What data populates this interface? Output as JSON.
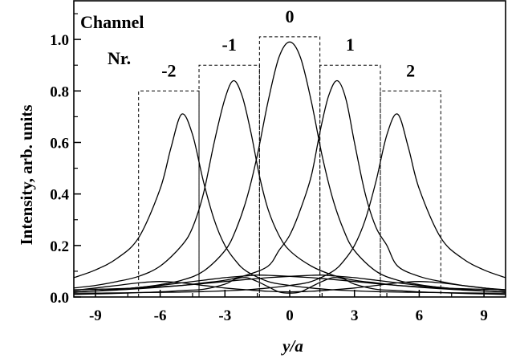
{
  "chart_data": {
    "type": "line",
    "xlabel": "y/a",
    "ylabel": "Intensity, arb. units",
    "xlim": [
      -10,
      10
    ],
    "ylim": [
      0,
      1.15
    ],
    "x_ticks": [
      -9,
      -6,
      -3,
      0,
      3,
      6,
      9
    ],
    "x_tick_labels": [
      "-9",
      "-6",
      "-3",
      "0",
      "3",
      "6",
      "9"
    ],
    "y_ticks": [
      0,
      0.2,
      0.4,
      0.6,
      0.8,
      1.0
    ],
    "y_tick_labels": [
      "0.0",
      "0.2",
      "0.4",
      "0.6",
      "0.8",
      "1.0"
    ],
    "legend_title": [
      "Channel",
      "Nr."
    ],
    "channels": [
      {
        "label": "-2",
        "x_range": [
          -7.0,
          -4.2
        ],
        "level": 0.8,
        "peak_x": -5.0,
        "peak_y": 0.71
      },
      {
        "label": "-1",
        "x_range": [
          -4.2,
          -1.4
        ],
        "level": 0.9,
        "peak_x": -2.6,
        "peak_y": 0.84
      },
      {
        "label": "0",
        "x_range": [
          -1.4,
          1.4
        ],
        "level": 1.01,
        "peak_x": 0.0,
        "peak_y": 0.99
      },
      {
        "label": "1",
        "x_range": [
          1.4,
          4.2
        ],
        "level": 0.9,
        "peak_x": 2.6,
        "peak_y": 0.84
      },
      {
        "label": "2",
        "x_range": [
          4.2,
          7.0
        ],
        "level": 0.8,
        "peak_x": 5.0,
        "peak_y": 0.71
      }
    ],
    "series": [
      {
        "x": [
          -10,
          -9,
          -8,
          -7,
          -6,
          -5.5,
          -5,
          -4.5,
          -4,
          -3.5,
          -3,
          -2.5,
          -2,
          -1,
          0,
          1,
          2,
          3,
          4,
          5,
          6,
          7,
          8,
          9,
          10
        ],
        "y": [
          0.075,
          0.105,
          0.15,
          0.23,
          0.42,
          0.58,
          0.71,
          0.63,
          0.45,
          0.3,
          0.2,
          0.14,
          0.1,
          0.06,
          0.045,
          0.035,
          0.028,
          0.024,
          0.021,
          0.019,
          0.018,
          0.017,
          0.016,
          0.015,
          0.015
        ]
      },
      {
        "x": [
          -10,
          -9,
          -8,
          -7,
          -6,
          -5,
          -4.5,
          -4,
          -3.5,
          -3,
          -2.6,
          -2.2,
          -1.8,
          -1.4,
          -1,
          -0.5,
          0,
          1,
          2,
          3,
          4,
          5,
          6,
          7,
          8,
          9,
          10
        ],
        "y": [
          0.035,
          0.045,
          0.06,
          0.08,
          0.12,
          0.2,
          0.27,
          0.4,
          0.6,
          0.77,
          0.84,
          0.78,
          0.64,
          0.47,
          0.34,
          0.24,
          0.18,
          0.12,
          0.085,
          0.065,
          0.055,
          0.045,
          0.04,
          0.035,
          0.032,
          0.03,
          0.028
        ]
      },
      {
        "x": [
          -10,
          -9,
          -8,
          -7,
          -6,
          -5,
          -4,
          -3,
          -2.5,
          -2,
          -1.5,
          -1,
          -0.5,
          0,
          0.5,
          1,
          1.5,
          2,
          2.5,
          3,
          4,
          5,
          6,
          7,
          8,
          9,
          10
        ],
        "y": [
          0.02,
          0.024,
          0.03,
          0.037,
          0.048,
          0.065,
          0.1,
          0.18,
          0.26,
          0.38,
          0.55,
          0.76,
          0.93,
          0.99,
          0.93,
          0.76,
          0.55,
          0.38,
          0.26,
          0.18,
          0.1,
          0.065,
          0.048,
          0.037,
          0.03,
          0.024,
          0.02
        ]
      },
      {
        "x": [
          -10,
          -9,
          -8,
          -7,
          -6,
          -5,
          -4,
          -3,
          -2,
          -1,
          -0.5,
          0,
          0.5,
          1,
          1.4,
          1.8,
          2.2,
          2.6,
          3,
          3.5,
          4,
          4.5,
          5,
          6,
          7,
          8,
          9,
          10
        ],
        "y": [
          0.028,
          0.03,
          0.032,
          0.035,
          0.04,
          0.045,
          0.055,
          0.065,
          0.085,
          0.12,
          0.18,
          0.24,
          0.34,
          0.47,
          0.64,
          0.78,
          0.84,
          0.77,
          0.6,
          0.4,
          0.27,
          0.2,
          0.12,
          0.08,
          0.06,
          0.045,
          0.035,
          0.028
        ]
      },
      {
        "x": [
          -10,
          -9,
          -8,
          -7,
          -6,
          -5,
          -4,
          -3,
          -2,
          -1,
          0,
          1,
          2,
          2.5,
          3,
          3.5,
          4,
          4.5,
          5,
          5.5,
          6,
          7,
          8,
          9,
          10
        ],
        "y": [
          0.015,
          0.015,
          0.016,
          0.017,
          0.018,
          0.019,
          0.021,
          0.024,
          0.028,
          0.035,
          0.045,
          0.06,
          0.1,
          0.14,
          0.2,
          0.3,
          0.45,
          0.63,
          0.71,
          0.58,
          0.42,
          0.23,
          0.15,
          0.105,
          0.075
        ]
      },
      {
        "x": [
          -10,
          -9,
          -8,
          -7,
          -6,
          -5,
          -4,
          -3,
          -2,
          -1.5,
          -1,
          0,
          1,
          2,
          3,
          4,
          5,
          6,
          7,
          8,
          9,
          10
        ],
        "y": [
          0.02,
          0.024,
          0.03,
          0.037,
          0.045,
          0.055,
          0.065,
          0.075,
          0.082,
          0.085,
          0.084,
          0.08,
          0.075,
          0.068,
          0.06,
          0.052,
          0.045,
          0.038,
          0.032,
          0.027,
          0.023,
          0.02
        ]
      },
      {
        "x": [
          -10,
          -9,
          -8,
          -7,
          -6,
          -5,
          -4,
          -3,
          -2,
          -1,
          0,
          1,
          1.5,
          2,
          3,
          4,
          5,
          6,
          7,
          8,
          9,
          10
        ],
        "y": [
          0.02,
          0.023,
          0.027,
          0.032,
          0.038,
          0.045,
          0.052,
          0.06,
          0.068,
          0.075,
          0.08,
          0.084,
          0.085,
          0.082,
          0.075,
          0.065,
          0.055,
          0.045,
          0.037,
          0.03,
          0.024,
          0.02
        ]
      },
      {
        "x": [
          -10,
          -9,
          -8,
          -7,
          -6,
          -5,
          -4,
          -3,
          -2,
          -1,
          0,
          1,
          2,
          3,
          4,
          5,
          6,
          7,
          8,
          9,
          10
        ],
        "y": [
          0.025,
          0.035,
          0.045,
          0.055,
          0.06,
          0.055,
          0.045,
          0.035,
          0.028,
          0.022,
          0.02,
          0.022,
          0.028,
          0.035,
          0.045,
          0.055,
          0.06,
          0.055,
          0.045,
          0.035,
          0.025
        ]
      },
      {
        "x": [
          -10,
          -9,
          -8,
          -7,
          -6,
          -5,
          -4,
          -3,
          -2.5,
          -2,
          -1.5,
          -1,
          -0.5,
          0,
          0.5,
          1,
          1.5,
          2,
          2.5,
          3,
          4,
          5,
          6,
          7,
          8,
          9,
          10
        ],
        "y": [
          0.01,
          0.012,
          0.014,
          0.017,
          0.02,
          0.025,
          0.03,
          0.05,
          0.07,
          0.075,
          0.06,
          0.04,
          0.02,
          0.015,
          0.02,
          0.04,
          0.06,
          0.075,
          0.07,
          0.05,
          0.03,
          0.025,
          0.02,
          0.017,
          0.014,
          0.012,
          0.01
        ]
      }
    ]
  }
}
